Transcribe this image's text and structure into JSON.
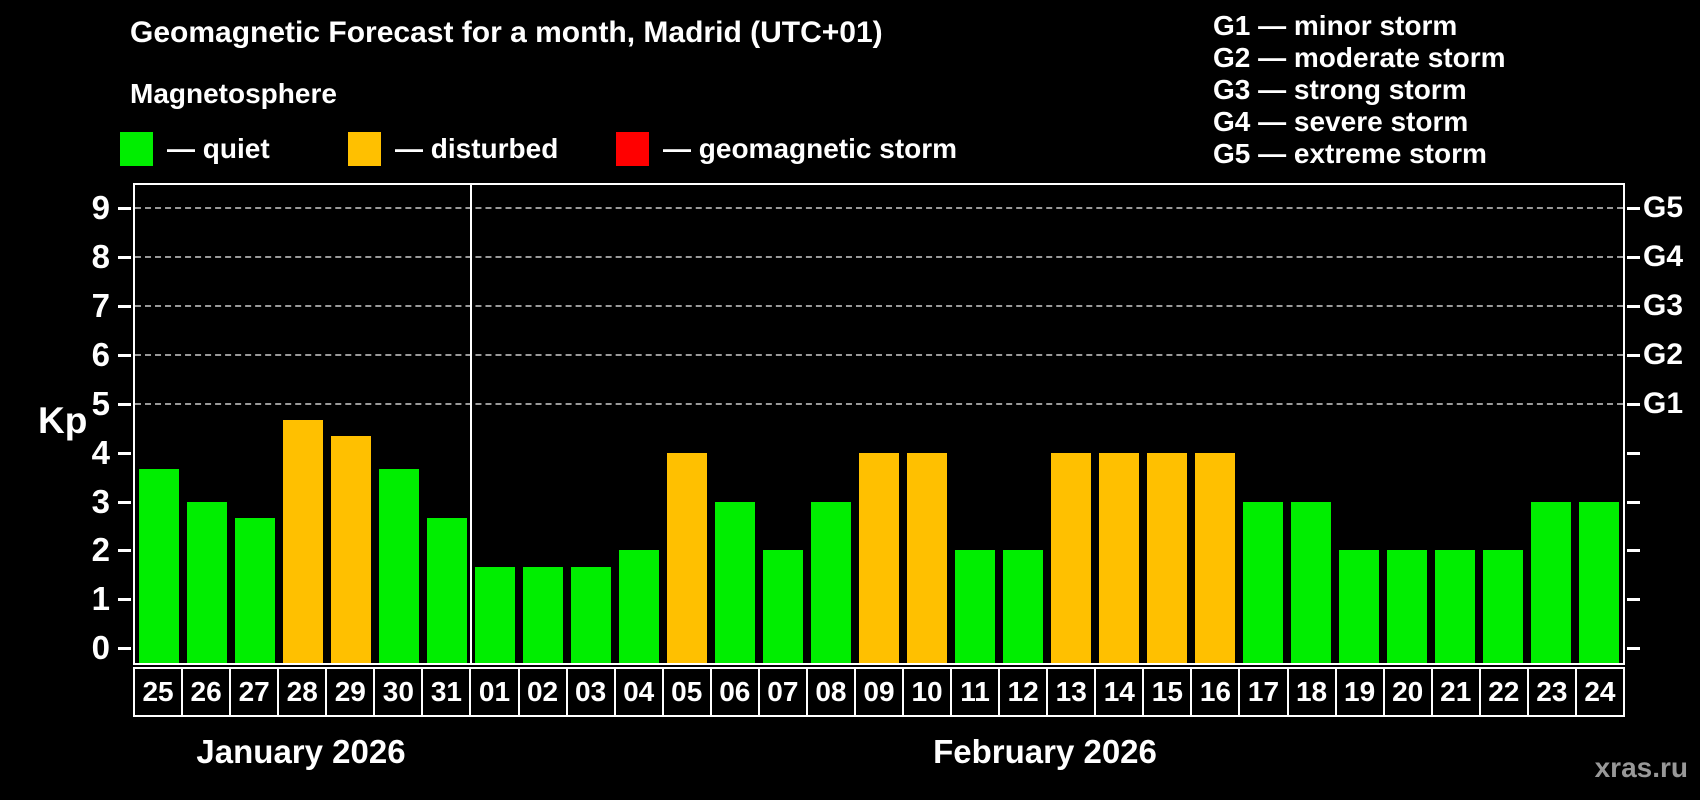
{
  "title": "Geomagnetic Forecast for a month, Madrid (UTC+01)",
  "subtitle": "Magnetosphere",
  "legend": {
    "items": [
      {
        "name": "quiet",
        "label": "— quiet",
        "color": "#00ee00"
      },
      {
        "name": "disturbed",
        "label": "— disturbed",
        "color": "#ffc000"
      },
      {
        "name": "storm",
        "label": "— geomagnetic storm",
        "color": "#ff0000"
      }
    ]
  },
  "storm_scale_legend": [
    "G1 — minor storm",
    "G2 — moderate storm",
    "G3 — strong storm",
    "G4 — severe storm",
    "G5 — extreme storm"
  ],
  "watermark": "xras.ru",
  "chart_data": {
    "type": "bar",
    "title": "Geomagnetic Forecast for a month, Madrid (UTC+01)",
    "ylabel": "Kp",
    "ylim": [
      -0.3,
      9.47
    ],
    "yticks": [
      0,
      1,
      2,
      3,
      4,
      5,
      6,
      7,
      8,
      9
    ],
    "gridlines_at_kp": [
      5,
      6,
      7,
      8,
      9
    ],
    "grid_style": "dashed",
    "legend_position": "top",
    "right_axis_labels": [
      {
        "label": "G1",
        "kp": 5
      },
      {
        "label": "G2",
        "kp": 6
      },
      {
        "label": "G3",
        "kp": 7
      },
      {
        "label": "G4",
        "kp": 8
      },
      {
        "label": "G5",
        "kp": 9
      }
    ],
    "months": [
      {
        "label": "January 2026",
        "days": 7
      },
      {
        "label": "February 2026",
        "days": 24
      }
    ],
    "categories": [
      "25",
      "26",
      "27",
      "28",
      "29",
      "30",
      "31",
      "01",
      "02",
      "03",
      "04",
      "05",
      "06",
      "07",
      "08",
      "09",
      "10",
      "11",
      "12",
      "13",
      "14",
      "15",
      "16",
      "17",
      "18",
      "19",
      "20",
      "21",
      "22",
      "23",
      "24"
    ],
    "values": [
      3.67,
      3.0,
      2.67,
      4.67,
      4.33,
      3.67,
      2.67,
      1.67,
      1.67,
      1.67,
      2.0,
      4.0,
      3.0,
      2.0,
      3.0,
      4.0,
      4.0,
      2.0,
      2.0,
      4.0,
      4.0,
      4.0,
      4.0,
      3.0,
      3.0,
      2.0,
      2.0,
      2.0,
      2.0,
      3.0,
      3.0
    ],
    "statuses": [
      "quiet",
      "quiet",
      "quiet",
      "disturbed",
      "disturbed",
      "quiet",
      "quiet",
      "quiet",
      "quiet",
      "quiet",
      "quiet",
      "disturbed",
      "quiet",
      "quiet",
      "quiet",
      "disturbed",
      "disturbed",
      "quiet",
      "quiet",
      "disturbed",
      "disturbed",
      "disturbed",
      "disturbed",
      "quiet",
      "quiet",
      "quiet",
      "quiet",
      "quiet",
      "quiet",
      "quiet",
      "quiet"
    ],
    "status_colors": {
      "quiet": "#00ee00",
      "disturbed": "#ffc000",
      "storm": "#ff0000"
    }
  }
}
